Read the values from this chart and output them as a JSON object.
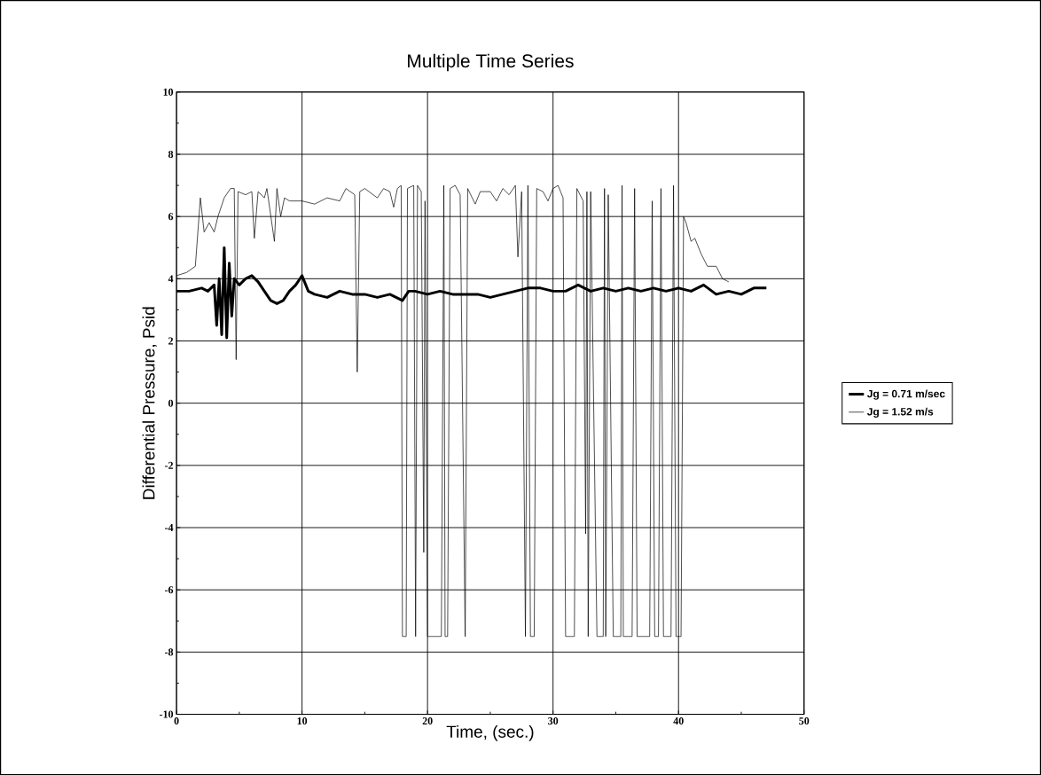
{
  "chart_data": {
    "type": "line",
    "title": "Multiple Time Series",
    "xlabel": "Time, (sec.)",
    "ylabel": "Differential Pressure, Psid",
    "xlim": [
      0,
      50
    ],
    "xticks": [
      0,
      10,
      20,
      30,
      40,
      50
    ],
    "ylim": [
      -10,
      10
    ],
    "yticks": [
      -10,
      -8,
      -6,
      -4,
      -2,
      0,
      2,
      4,
      6,
      8,
      10
    ],
    "grid": true,
    "legend": "right",
    "marker": "none",
    "line_style": "solid",
    "series": [
      {
        "name": "Jg = 0.71 m/sec",
        "color": "#000000",
        "x": [
          0,
          1,
          2,
          2.5,
          3,
          3.2,
          3.4,
          3.6,
          3.8,
          4.0,
          4.2,
          4.4,
          4.6,
          5,
          5.5,
          6,
          6.5,
          7,
          7.5,
          8,
          8.5,
          9,
          9.5,
          10,
          10.5,
          11,
          12,
          13,
          14,
          15,
          16,
          17,
          18,
          18.5,
          19,
          20,
          21,
          22,
          23,
          24,
          25,
          26,
          27,
          28,
          29,
          30,
          31,
          32,
          33,
          34,
          35,
          36,
          37,
          38,
          39,
          40,
          41,
          42,
          43,
          44,
          45,
          46,
          47
        ],
        "values": [
          3.6,
          3.6,
          3.7,
          3.6,
          3.8,
          2.5,
          4.0,
          2.2,
          5.0,
          2.1,
          4.5,
          2.8,
          4.0,
          3.8,
          4.0,
          4.1,
          3.9,
          3.6,
          3.3,
          3.2,
          3.3,
          3.6,
          3.8,
          4.1,
          3.6,
          3.5,
          3.4,
          3.6,
          3.5,
          3.5,
          3.4,
          3.5,
          3.3,
          3.6,
          3.6,
          3.5,
          3.6,
          3.5,
          3.5,
          3.5,
          3.4,
          3.5,
          3.6,
          3.7,
          3.7,
          3.6,
          3.6,
          3.8,
          3.6,
          3.7,
          3.6,
          3.7,
          3.6,
          3.7,
          3.6,
          3.7,
          3.6,
          3.8,
          3.5,
          3.6,
          3.5,
          3.7,
          3.7
        ]
      },
      {
        "name": "Jg = 1.52 m/s",
        "color": "#000000",
        "x": [
          0,
          0.8,
          1.5,
          1.9,
          2.2,
          2.6,
          3.0,
          3.3,
          3.8,
          4.3,
          4.6,
          4.75,
          4.9,
          5.5,
          6.0,
          6.2,
          6.5,
          7.0,
          7.2,
          7.8,
          8.0,
          8.3,
          8.6,
          9.0,
          10,
          11,
          12,
          13,
          13.5,
          14.2,
          14.4,
          14.6,
          15,
          16,
          16.5,
          17.0,
          17.3,
          17.6,
          17.9,
          18.0,
          18.3,
          18.4,
          18.9,
          19.05,
          19.2,
          19.5,
          19.7,
          19.8,
          20.0,
          21.1,
          21.3,
          21.4,
          21.6,
          21.8,
          22.2,
          22.6,
          23.0,
          23.2,
          23.8,
          24.2,
          25.0,
          25.5,
          26.0,
          26.5,
          27.0,
          27.2,
          27.5,
          27.8,
          28.0,
          28.2,
          28.5,
          28.7,
          29.2,
          29.6,
          30.0,
          30.4,
          30.8,
          31.0,
          31.7,
          31.9,
          32.4,
          32.6,
          32.7,
          32.8,
          33.0,
          33.5,
          34.0,
          34.1,
          34.2,
          34.4,
          34.8,
          35.4,
          35.5,
          35.6,
          36.3,
          36.5,
          36.7,
          37.7,
          37.9,
          38.1,
          38.4,
          38.6,
          38.8,
          39.4,
          39.6,
          39.8,
          40.2,
          40.4,
          40.6,
          41.0,
          41.3,
          41.8,
          42.3,
          43.0,
          43.5,
          44.0
        ],
        "values": [
          4.1,
          4.2,
          4.4,
          6.6,
          5.5,
          5.8,
          5.5,
          6.0,
          6.6,
          6.9,
          6.9,
          1.4,
          6.8,
          6.7,
          6.8,
          5.3,
          6.8,
          6.6,
          6.9,
          5.2,
          6.9,
          6.0,
          6.6,
          6.5,
          6.5,
          6.4,
          6.6,
          6.5,
          6.9,
          6.7,
          1.0,
          6.8,
          6.9,
          6.6,
          6.9,
          6.8,
          6.3,
          6.9,
          7.0,
          -7.5,
          -7.5,
          6.9,
          7.0,
          -7.5,
          7.0,
          6.8,
          -4.8,
          6.5,
          -7.5,
          -7.5,
          7.0,
          -7.5,
          -7.5,
          6.9,
          7.0,
          6.7,
          -7.5,
          6.9,
          6.4,
          6.8,
          6.8,
          6.5,
          6.9,
          6.7,
          7.0,
          4.7,
          6.8,
          -7.5,
          7.0,
          -7.5,
          -7.5,
          6.9,
          6.8,
          6.5,
          6.9,
          7.0,
          6.6,
          -7.5,
          -7.5,
          6.9,
          6.5,
          -4.2,
          6.8,
          -7.5,
          6.8,
          -7.5,
          -7.5,
          6.9,
          -7.5,
          6.7,
          -7.5,
          -7.5,
          7.0,
          -7.5,
          -7.5,
          6.9,
          -7.5,
          -7.5,
          6.5,
          -7.5,
          -7.5,
          6.9,
          -7.5,
          -7.5,
          7.0,
          -7.5,
          -7.5,
          6.0,
          5.8,
          5.2,
          5.3,
          4.8,
          4.4,
          4.4,
          4.0,
          3.9
        ]
      }
    ]
  }
}
